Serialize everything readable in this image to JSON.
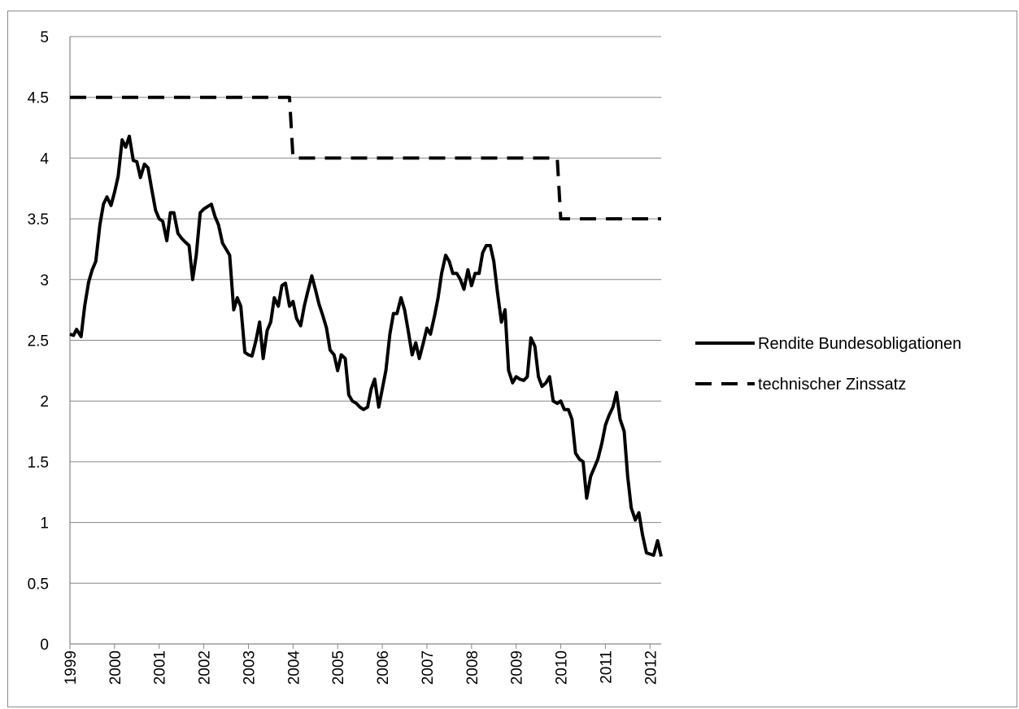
{
  "chart_data": {
    "type": "line",
    "title": "",
    "xlabel": "",
    "ylabel": "",
    "xlim": [
      1999.0,
      2012.25
    ],
    "ylim": [
      0,
      5
    ],
    "y_ticks": [
      0,
      0.5,
      1,
      1.5,
      2,
      2.5,
      3,
      3.5,
      4,
      4.5,
      5
    ],
    "y_tick_labels": [
      "0",
      "0.5",
      "1",
      "1.5",
      "2",
      "2.5",
      "3",
      "3.5",
      "4",
      "4.5",
      "5"
    ],
    "x_tick_labels": [
      "1999",
      "2000",
      "2001",
      "2002",
      "2003",
      "2004",
      "2005",
      "2006",
      "2007",
      "2008",
      "2009",
      "2010",
      "2011",
      "2012"
    ],
    "grid": "horizontal",
    "legend_position": "right",
    "series": [
      {
        "name": "Rendite Bundesobligationen",
        "style": "solid",
        "color": "#000000",
        "points": [
          [
            1999.0,
            2.55
          ],
          [
            1999.08,
            2.54
          ],
          [
            1999.15,
            2.59
          ],
          [
            1999.25,
            2.53
          ],
          [
            1999.33,
            2.78
          ],
          [
            1999.42,
            2.98
          ],
          [
            1999.5,
            3.08
          ],
          [
            1999.58,
            3.15
          ],
          [
            1999.67,
            3.45
          ],
          [
            1999.75,
            3.62
          ],
          [
            1999.83,
            3.68
          ],
          [
            1999.92,
            3.61
          ],
          [
            2000.0,
            3.72
          ],
          [
            2000.08,
            3.85
          ],
          [
            2000.17,
            4.15
          ],
          [
            2000.25,
            4.09
          ],
          [
            2000.33,
            4.18
          ],
          [
            2000.42,
            3.98
          ],
          [
            2000.5,
            3.97
          ],
          [
            2000.58,
            3.84
          ],
          [
            2000.67,
            3.95
          ],
          [
            2000.75,
            3.92
          ],
          [
            2000.83,
            3.75
          ],
          [
            2000.92,
            3.57
          ],
          [
            2001.0,
            3.5
          ],
          [
            2001.08,
            3.48
          ],
          [
            2001.17,
            3.32
          ],
          [
            2001.25,
            3.55
          ],
          [
            2001.33,
            3.55
          ],
          [
            2001.42,
            3.38
          ],
          [
            2001.5,
            3.34
          ],
          [
            2001.58,
            3.31
          ],
          [
            2001.67,
            3.28
          ],
          [
            2001.75,
            3.0
          ],
          [
            2001.83,
            3.2
          ],
          [
            2001.92,
            3.55
          ],
          [
            2002.0,
            3.58
          ],
          [
            2002.08,
            3.6
          ],
          [
            2002.17,
            3.62
          ],
          [
            2002.25,
            3.52
          ],
          [
            2002.33,
            3.45
          ],
          [
            2002.42,
            3.3
          ],
          [
            2002.5,
            3.25
          ],
          [
            2002.58,
            3.2
          ],
          [
            2002.67,
            2.75
          ],
          [
            2002.75,
            2.85
          ],
          [
            2002.83,
            2.78
          ],
          [
            2002.92,
            2.4
          ],
          [
            2003.0,
            2.38
          ],
          [
            2003.08,
            2.37
          ],
          [
            2003.17,
            2.5
          ],
          [
            2003.25,
            2.65
          ],
          [
            2003.33,
            2.35
          ],
          [
            2003.42,
            2.58
          ],
          [
            2003.5,
            2.65
          ],
          [
            2003.58,
            2.85
          ],
          [
            2003.67,
            2.78
          ],
          [
            2003.75,
            2.95
          ],
          [
            2003.83,
            2.97
          ],
          [
            2003.92,
            2.78
          ],
          [
            2004.0,
            2.82
          ],
          [
            2004.08,
            2.68
          ],
          [
            2004.17,
            2.62
          ],
          [
            2004.25,
            2.78
          ],
          [
            2004.33,
            2.9
          ],
          [
            2004.42,
            3.03
          ],
          [
            2004.5,
            2.92
          ],
          [
            2004.58,
            2.8
          ],
          [
            2004.67,
            2.7
          ],
          [
            2004.75,
            2.6
          ],
          [
            2004.83,
            2.42
          ],
          [
            2004.92,
            2.38
          ],
          [
            2005.0,
            2.25
          ],
          [
            2005.08,
            2.38
          ],
          [
            2005.17,
            2.35
          ],
          [
            2005.25,
            2.05
          ],
          [
            2005.33,
            2.0
          ],
          [
            2005.42,
            1.98
          ],
          [
            2005.5,
            1.95
          ],
          [
            2005.58,
            1.93
          ],
          [
            2005.67,
            1.95
          ],
          [
            2005.75,
            2.1
          ],
          [
            2005.83,
            2.18
          ],
          [
            2005.92,
            1.95
          ],
          [
            2006.0,
            2.1
          ],
          [
            2006.08,
            2.25
          ],
          [
            2006.17,
            2.55
          ],
          [
            2006.25,
            2.72
          ],
          [
            2006.33,
            2.72
          ],
          [
            2006.42,
            2.85
          ],
          [
            2006.5,
            2.75
          ],
          [
            2006.58,
            2.58
          ],
          [
            2006.67,
            2.38
          ],
          [
            2006.75,
            2.48
          ],
          [
            2006.83,
            2.35
          ],
          [
            2006.92,
            2.48
          ],
          [
            2007.0,
            2.6
          ],
          [
            2007.08,
            2.55
          ],
          [
            2007.17,
            2.7
          ],
          [
            2007.25,
            2.85
          ],
          [
            2007.33,
            3.05
          ],
          [
            2007.42,
            3.2
          ],
          [
            2007.5,
            3.15
          ],
          [
            2007.58,
            3.05
          ],
          [
            2007.67,
            3.05
          ],
          [
            2007.75,
            3.0
          ],
          [
            2007.83,
            2.92
          ],
          [
            2007.92,
            3.08
          ],
          [
            2008.0,
            2.95
          ],
          [
            2008.08,
            3.05
          ],
          [
            2008.17,
            3.05
          ],
          [
            2008.25,
            3.22
          ],
          [
            2008.33,
            3.28
          ],
          [
            2008.42,
            3.28
          ],
          [
            2008.5,
            3.15
          ],
          [
            2008.58,
            2.9
          ],
          [
            2008.67,
            2.65
          ],
          [
            2008.75,
            2.75
          ],
          [
            2008.83,
            2.25
          ],
          [
            2008.92,
            2.15
          ],
          [
            2009.0,
            2.2
          ],
          [
            2009.08,
            2.18
          ],
          [
            2009.17,
            2.17
          ],
          [
            2009.25,
            2.2
          ],
          [
            2009.33,
            2.52
          ],
          [
            2009.42,
            2.45
          ],
          [
            2009.5,
            2.2
          ],
          [
            2009.58,
            2.12
          ],
          [
            2009.67,
            2.15
          ],
          [
            2009.75,
            2.2
          ],
          [
            2009.83,
            2.0
          ],
          [
            2009.92,
            1.98
          ],
          [
            2010.0,
            2.0
          ],
          [
            2010.08,
            1.93
          ],
          [
            2010.17,
            1.93
          ],
          [
            2010.25,
            1.85
          ],
          [
            2010.33,
            1.57
          ],
          [
            2010.42,
            1.52
          ],
          [
            2010.5,
            1.5
          ],
          [
            2010.58,
            1.2
          ],
          [
            2010.67,
            1.38
          ],
          [
            2010.75,
            1.45
          ],
          [
            2010.83,
            1.52
          ],
          [
            2010.92,
            1.65
          ],
          [
            2011.0,
            1.8
          ],
          [
            2011.08,
            1.88
          ],
          [
            2011.17,
            1.95
          ],
          [
            2011.25,
            2.07
          ],
          [
            2011.33,
            1.85
          ],
          [
            2011.42,
            1.75
          ],
          [
            2011.5,
            1.38
          ],
          [
            2011.58,
            1.12
          ],
          [
            2011.67,
            1.02
          ],
          [
            2011.75,
            1.08
          ],
          [
            2011.83,
            0.9
          ],
          [
            2011.92,
            0.75
          ],
          [
            2012.0,
            0.74
          ],
          [
            2012.08,
            0.73
          ],
          [
            2012.17,
            0.85
          ],
          [
            2012.25,
            0.72
          ]
        ]
      },
      {
        "name": "technischer Zinssatz",
        "style": "dashed",
        "color": "#000000",
        "points": [
          [
            1999.0,
            4.5
          ],
          [
            2003.92,
            4.5
          ],
          [
            2004.0,
            4.0
          ],
          [
            2009.92,
            4.0
          ],
          [
            2010.0,
            3.5
          ],
          [
            2012.25,
            3.5
          ]
        ]
      }
    ]
  }
}
